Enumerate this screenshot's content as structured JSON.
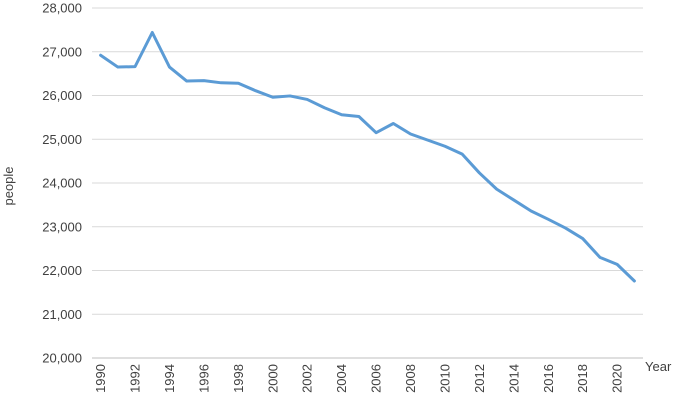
{
  "chart_data": {
    "type": "line",
    "title": "",
    "xlabel": "Year",
    "ylabel": "people",
    "ylim": [
      20000,
      28000
    ],
    "y_ticks": [
      20000,
      21000,
      22000,
      23000,
      24000,
      25000,
      26000,
      27000,
      28000
    ],
    "y_tick_labels": [
      "20,000",
      "21,000",
      "22,000",
      "23,000",
      "24,000",
      "25,000",
      "26,000",
      "27,000",
      "28,000"
    ],
    "x_ticks": [
      1990,
      1992,
      1994,
      1996,
      1998,
      2000,
      2002,
      2004,
      2006,
      2008,
      2010,
      2012,
      2014,
      2016,
      2018,
      2020
    ],
    "x_tick_labels": [
      "1990",
      "1992",
      "1994",
      "1996",
      "1998",
      "2000",
      "2002",
      "2004",
      "2006",
      "2008",
      "2010",
      "2012",
      "2014",
      "2016",
      "2018",
      "2020"
    ],
    "grid": true,
    "legend": "none",
    "line_color": "#5b9bd5",
    "x": [
      1990,
      1991,
      1992,
      1993,
      1994,
      1995,
      1996,
      1997,
      1998,
      1999,
      2000,
      2001,
      2002,
      2003,
      2004,
      2005,
      2006,
      2007,
      2008,
      2009,
      2010,
      2011,
      2012,
      2013,
      2014,
      2015,
      2016,
      2017,
      2018,
      2019,
      2020,
      2021
    ],
    "series": [
      {
        "values": [
          26920,
          26650,
          26660,
          27440,
          26650,
          26330,
          26340,
          26290,
          26280,
          26110,
          25960,
          25990,
          25910,
          25720,
          25560,
          25520,
          25150,
          25360,
          25120,
          24980,
          24840,
          24660,
          24230,
          23860,
          23610,
          23360,
          23170,
          22970,
          22730,
          22300,
          22140,
          21760
        ]
      }
    ]
  }
}
